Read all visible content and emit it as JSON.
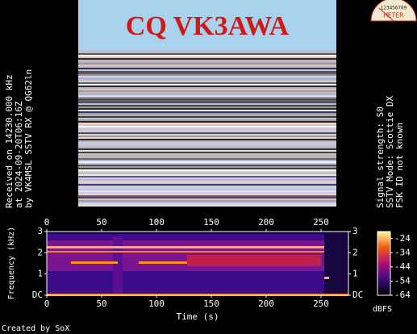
{
  "image_caption": "CQ VK3AWA",
  "meter": {
    "scale": "123456789",
    "label": "METER"
  },
  "left_info": [
    "Received on  14230.000 kHz",
    "at 2024-09-20T06:16Z",
    "by VK4MSL SSTV RX @ QG62ln"
  ],
  "right_info": [
    "Signal strength: S0",
    "SSTV Mode: Scottie DX",
    "FSK ID not known"
  ],
  "spectrogram": {
    "xlabel": "Time (s)",
    "ylabel": "Frequency (kHz)",
    "xlim": [
      0,
      275
    ],
    "xticks": [
      0,
      50,
      100,
      150,
      200,
      250
    ],
    "ylim": [
      0,
      3
    ],
    "yticks": [
      {
        "value": 0,
        "label": "DC"
      },
      1,
      2,
      3
    ],
    "colorbar": {
      "label": "dBFS",
      "lim": [
        -64,
        -19
      ],
      "ticks": [
        -24,
        -34,
        -44,
        -54,
        -64
      ]
    }
  },
  "footer": "Created by SoX"
}
